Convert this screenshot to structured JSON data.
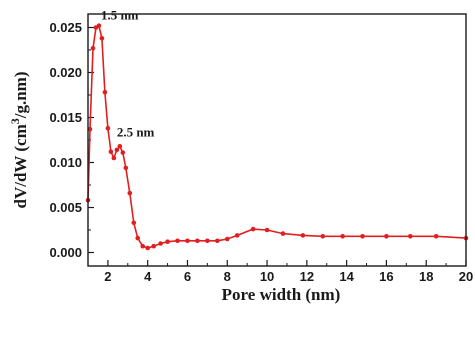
{
  "chart_data": {
    "type": "line",
    "title": "",
    "xlabel": "Pore width (nm)",
    "ylabel_main": "dV/dW (cm",
    "ylabel_sup": "3",
    "ylabel_end": "/g.nm)",
    "xlim": [
      1,
      20
    ],
    "ylim": [
      -0.0015,
      0.0265
    ],
    "x_ticks": [
      2,
      4,
      6,
      8,
      10,
      12,
      14,
      16,
      18,
      20
    ],
    "x_tick_labels": [
      "2",
      "4",
      "6",
      "8",
      "10",
      "12",
      "14",
      "16",
      "18",
      "20"
    ],
    "y_ticks": [
      0.0,
      0.005,
      0.01,
      0.015,
      0.02,
      0.025
    ],
    "y_tick_labels": [
      "0.000",
      "0.005",
      "0.010",
      "0.015",
      "0.020",
      "0.025"
    ],
    "series_color": "#e02020",
    "series": [
      {
        "x": [
          1.0,
          1.1,
          1.25,
          1.4,
          1.55,
          1.7,
          1.85,
          2.0,
          2.15,
          2.3,
          2.45,
          2.6,
          2.75,
          2.9,
          3.1,
          3.3,
          3.5,
          3.75,
          4.0,
          4.3,
          4.65,
          5.0,
          5.5,
          6.0,
          6.5,
          7.0,
          7.5,
          8.0,
          8.5,
          9.3,
          10.0,
          10.8,
          11.8,
          12.8,
          13.8,
          14.8,
          16.0,
          17.2,
          18.5,
          20.0
        ],
        "y": [
          0.0058,
          0.0137,
          0.0227,
          0.025,
          0.0252,
          0.0238,
          0.0178,
          0.0138,
          0.0112,
          0.0105,
          0.0114,
          0.0118,
          0.0111,
          0.0094,
          0.0066,
          0.0033,
          0.0016,
          0.0007,
          0.0005,
          0.0007,
          0.001,
          0.0012,
          0.0013,
          0.0013,
          0.0013,
          0.0013,
          0.0013,
          0.0015,
          0.0019,
          0.0026,
          0.0025,
          0.0021,
          0.0019,
          0.0018,
          0.0018,
          0.0018,
          0.0018,
          0.0018,
          0.0018,
          0.0016
        ]
      }
    ],
    "annotations": [
      {
        "text": "1.5 nm",
        "x": 1.5,
        "y": 0.0252
      },
      {
        "text": "2.5 nm",
        "x": 2.5,
        "y": 0.0118
      }
    ]
  }
}
